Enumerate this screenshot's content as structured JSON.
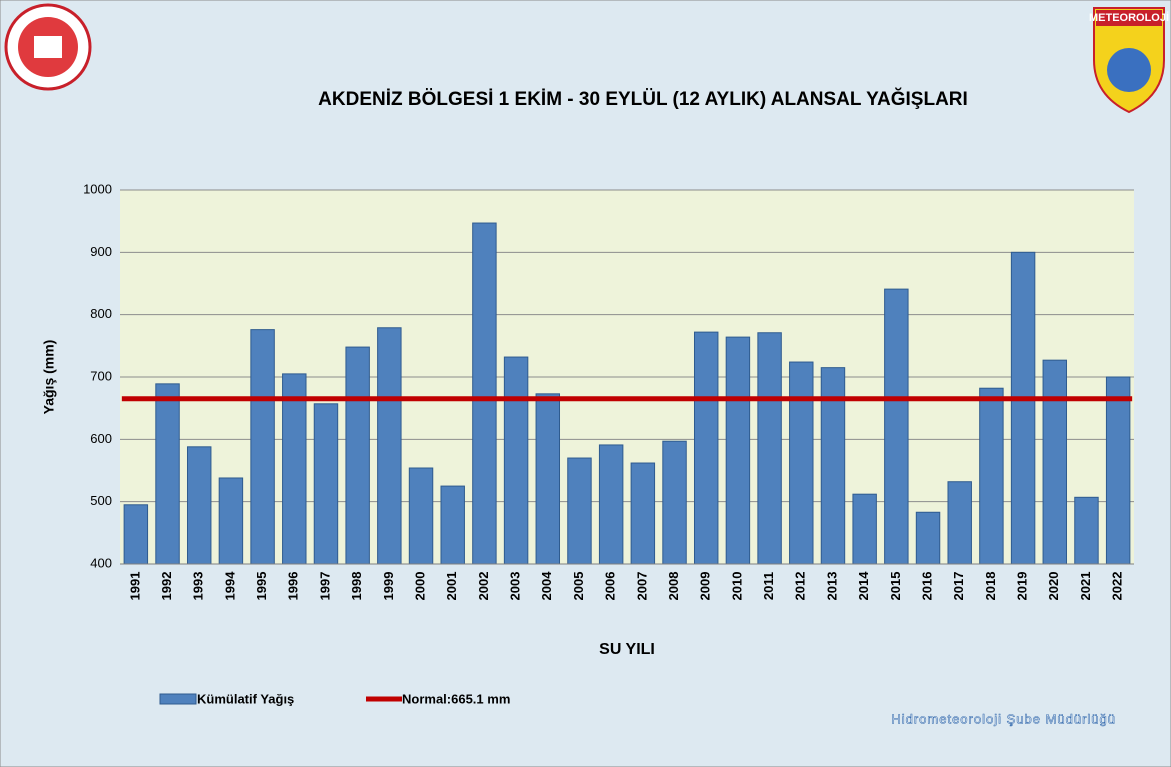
{
  "chart_data": {
    "type": "bar",
    "title": "AKDENİZ BÖLGESİ  1 EKİM - 30 EYLÜL (12 AYLIK) ALANSAL YAĞIŞLARI",
    "x_label": "SU YILI",
    "y_label": "Yağış (mm)",
    "categories": [
      "1991",
      "1992",
      "1993",
      "1994",
      "1995",
      "1996",
      "1997",
      "1998",
      "1999",
      "2000",
      "2001",
      "2002",
      "2003",
      "2004",
      "2005",
      "2006",
      "2007",
      "2008",
      "2009",
      "2010",
      "2011",
      "2012",
      "2013",
      "2014",
      "2015",
      "2016",
      "2017",
      "2018",
      "2019",
      "2020",
      "2021",
      "2022"
    ],
    "series": [
      {
        "name": "Kümülatif Yağış",
        "color": "#4f81bd",
        "values": [
          495,
          689,
          588,
          538,
          776,
          705,
          657,
          748,
          779,
          554,
          525,
          947,
          732,
          673,
          570,
          591,
          562,
          597,
          772,
          764,
          771,
          724,
          715,
          512,
          841,
          483,
          532,
          682,
          900,
          727,
          507,
          700
        ]
      }
    ],
    "reference_line": {
      "name": "Normal:665.1 mm",
      "value": 665.1,
      "color": "#c00000"
    },
    "ylim": [
      400,
      1000
    ],
    "yticks": [
      400,
      500,
      600,
      700,
      800,
      900,
      1000
    ],
    "grid": true,
    "footer": "Hidrometeoroloji Şube Müdürlüğü",
    "logo_text": "METEOROLOJİ"
  }
}
